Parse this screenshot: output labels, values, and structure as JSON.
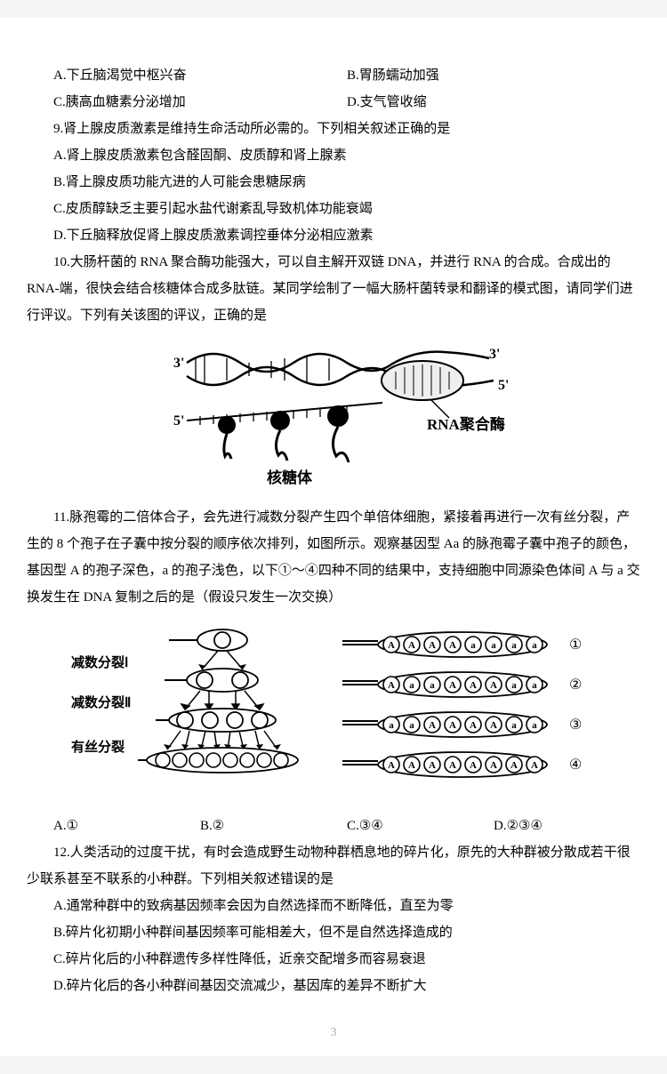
{
  "q8_tail": {
    "rowA": {
      "A": "A.下丘脑渴觉中枢兴奋",
      "B": "B.胃肠蠕动加强"
    },
    "rowC": {
      "C": "C.胰高血糖素分泌增加",
      "D": "D.支气管收缩"
    }
  },
  "q9": {
    "stem": "9.肾上腺皮质激素是维持生命活动所必需的。下列相关叙述正确的是",
    "A": "A.肾上腺皮质激素包含醛固酮、皮质醇和肾上腺素",
    "B": "B.肾上腺皮质功能亢进的人可能会患糖尿病",
    "C": "C.皮质醇缺乏主要引起水盐代谢紊乱导致机体功能衰竭",
    "D": "D.下丘脑释放促肾上腺皮质激素调控垂体分泌相应激素"
  },
  "q10": {
    "stem": "10.大肠杆菌的 RNA 聚合酶功能强大，可以自主解开双链 DNA，并进行 RNA 的合成。合成出的 RNA-端，很快会结合核糖体合成多肽链。某同学绘制了一幅大肠杆菌转录和翻译的模式图，请同学们进行评议。下列有关该图的评议，正确的是",
    "fig": {
      "label_3p_left": "3'",
      "label_5p_left": "5'",
      "label_3p_right": "3'",
      "label_5p_right": "5'",
      "rna_poly": "RNA聚合酶",
      "ribosome": "核糖体"
    }
  },
  "q11": {
    "stem": "11.脉孢霉的二倍体合子，会先进行减数分裂产生四个单倍体细胞，紧接着再进行一次有丝分裂，产生的 8 个孢子在子囊中按分裂的顺序依次排列，如图所示。观察基因型 Aa 的脉孢霉子囊中孢子的颜色，基因型 A 的孢子深色，a 的孢子浅色，以下①～④四种不同的结果中，支持细胞中同源染色体间 A 与 a 交换发生在 DNA 复制之后的是（假设只发生一次交换）",
    "fig": {
      "labels_left": [
        "减数分裂Ⅰ",
        "减数分裂Ⅱ",
        "有丝分裂"
      ],
      "row1": [
        "A",
        "A",
        "A",
        "A",
        "a",
        "a",
        "a",
        "a"
      ],
      "num1": "①",
      "row2": [
        "A",
        "a",
        "a",
        "A",
        "A",
        "A",
        "a",
        "a"
      ],
      "num2": "②",
      "row3": [
        "a",
        "a",
        "A",
        "A",
        "A",
        "A",
        "a",
        "a"
      ],
      "num3": "③",
      "row4": [
        "A",
        "A",
        "A",
        "A",
        "A",
        "A",
        "A",
        "A"
      ],
      "num4": "④"
    },
    "opts": {
      "A": "A.①",
      "B": "B.②",
      "C": "C.③④",
      "D": "D.②③④"
    }
  },
  "q12": {
    "stem": "12.人类活动的过度干扰，有时会造成野生动物种群栖息地的碎片化，原先的大种群被分散成若干很少联系甚至不联系的小种群。下列相关叙述错误的是",
    "A": "A.通常种群中的致病基因频率会因为自然选择而不断降低，直至为零",
    "B": "B.碎片化初期小种群间基因频率可能相差大，但不是自然选择造成的",
    "C": "C.碎片化后的小种群遗传多样性降低，近亲交配增多而容易衰退",
    "D": "D.碎片化后的各小种群间基因交流减少，基因库的差异不断扩大"
  },
  "pageNum": "3",
  "style": {
    "circle_fill_dark": "#333333",
    "circle_fill_light": "#ffffff",
    "stroke": "#000000"
  }
}
